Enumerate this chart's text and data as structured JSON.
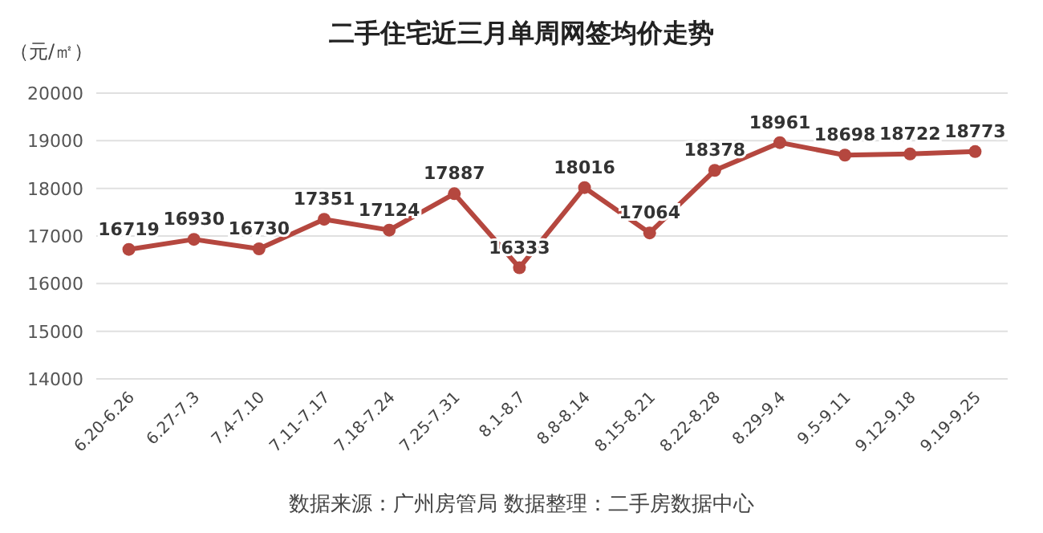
{
  "chart_data": {
    "type": "line",
    "title": "二手住宅近三月单周网签均价走势",
    "ylabel": "（元/㎡）",
    "annotations": [
      "数据来源：广州房管局  数据整理：二手房数据中心"
    ],
    "categories": [
      "6.20-6.26",
      "6.27-7.3",
      "7.4-7.10",
      "7.11-7.17",
      "7.18-7.24",
      "7.25-7.31",
      "8.1-8.7",
      "8.8-8.14",
      "8.15-8.21",
      "8.22-8.28",
      "8.29-9.4",
      "9.5-9.11",
      "9.12-9.18",
      "9.19-9.25"
    ],
    "values": [
      16719,
      16930,
      16730,
      17351,
      17124,
      17887,
      16333,
      18016,
      17064,
      18378,
      18961,
      18698,
      18722,
      18773
    ],
    "color": "#b5473f",
    "ylim": [
      14000,
      20000
    ],
    "yticks": [
      14000,
      15000,
      16000,
      17000,
      18000,
      19000,
      20000
    ],
    "grid": "y",
    "marker": "circle",
    "data_labels": true
  }
}
